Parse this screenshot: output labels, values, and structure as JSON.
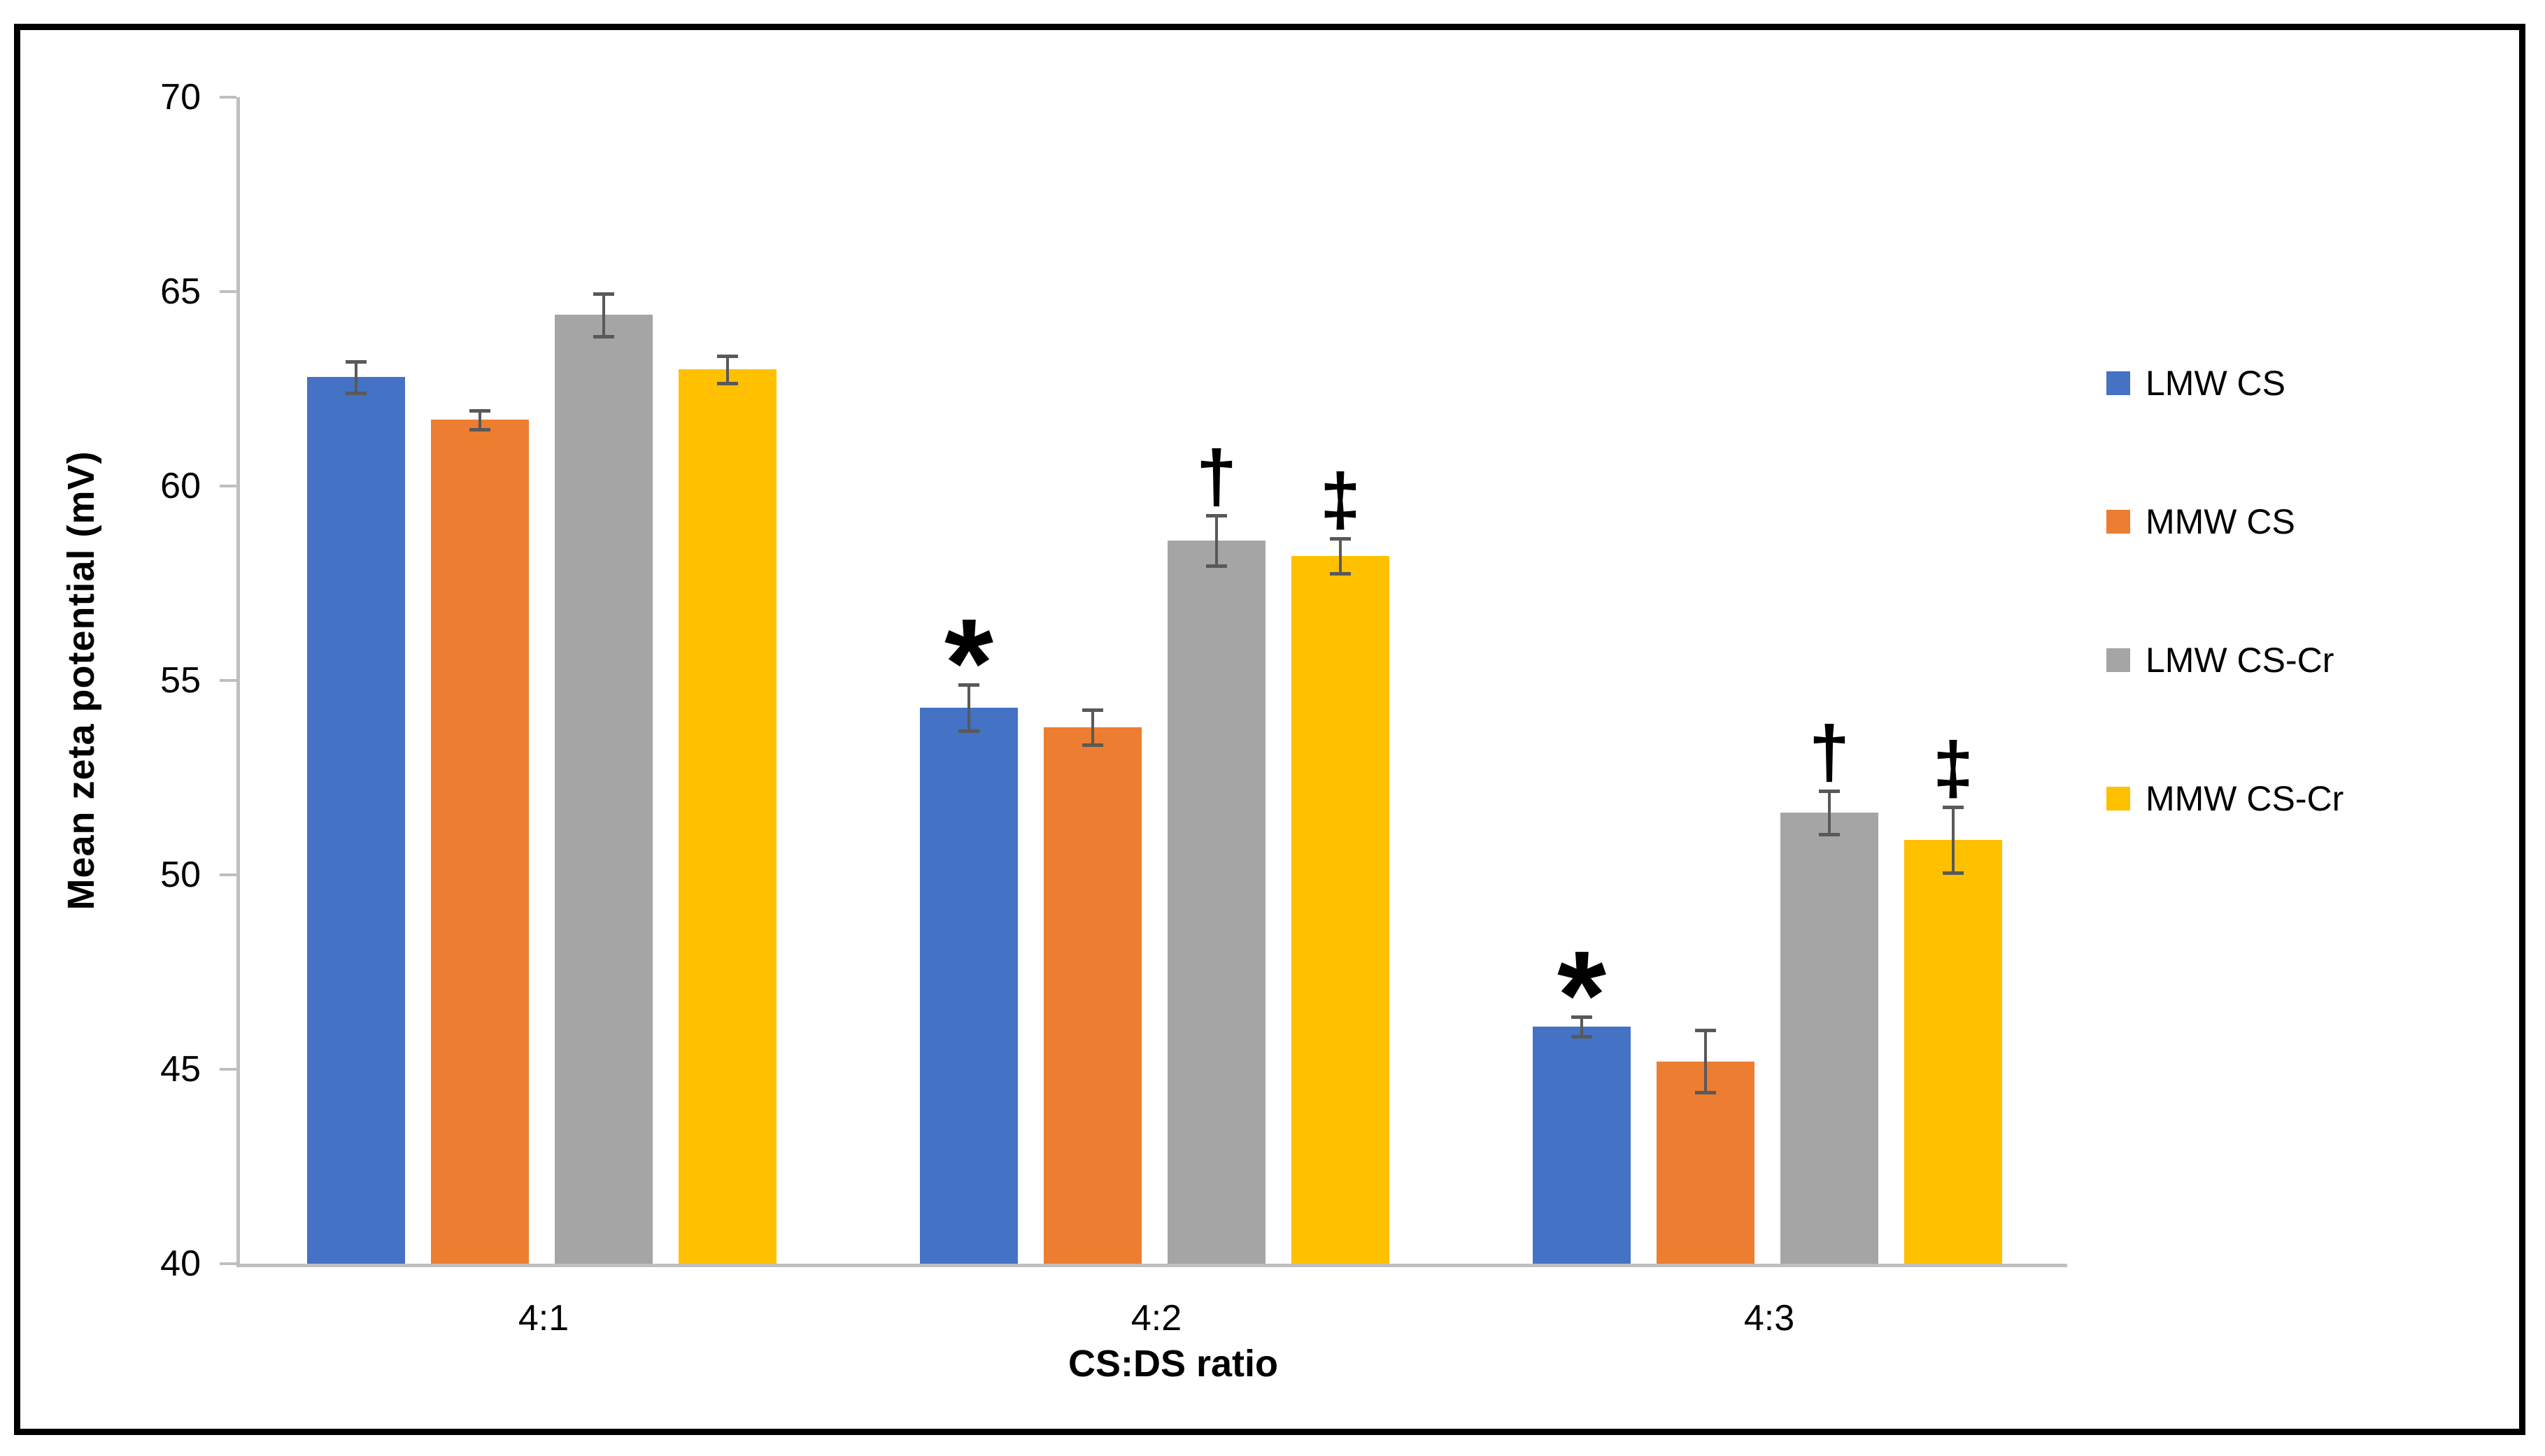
{
  "chart_data": {
    "type": "bar",
    "title": "",
    "xlabel": "CS:DS ratio",
    "ylabel": "Mean zeta potential (mV)",
    "categories": [
      "4:1",
      "4:2",
      "4:3"
    ],
    "ylim": [
      40,
      70
    ],
    "yticks": [
      40,
      45,
      50,
      55,
      60,
      65,
      70
    ],
    "grid": false,
    "legend_position": "right",
    "series": [
      {
        "name": "LMW CS",
        "color": "#4472C4",
        "values": [
          62.8,
          54.3,
          46.1
        ],
        "errors": [
          0.4,
          0.6,
          0.25
        ],
        "annotations": [
          "",
          "*",
          "*"
        ]
      },
      {
        "name": "MMW CS",
        "color": "#ED7D31",
        "values": [
          61.7,
          53.8,
          45.2
        ],
        "errors": [
          0.25,
          0.45,
          0.8
        ],
        "annotations": [
          "",
          "",
          ""
        ]
      },
      {
        "name": "LMW CS-Cr",
        "color": "#A5A5A5",
        "values": [
          64.4,
          58.6,
          51.6
        ],
        "errors": [
          0.55,
          0.65,
          0.55
        ],
        "annotations": [
          "",
          "†",
          "†"
        ]
      },
      {
        "name": "MMW CS-Cr",
        "color": "#FFC000",
        "values": [
          63.0,
          58.2,
          50.9
        ],
        "errors": [
          0.35,
          0.45,
          0.85
        ],
        "annotations": [
          "",
          "‡",
          "‡"
        ]
      }
    ],
    "error_bar_color": "#595959",
    "axis_color": "#BFBFBF",
    "text_color": "#000000"
  }
}
